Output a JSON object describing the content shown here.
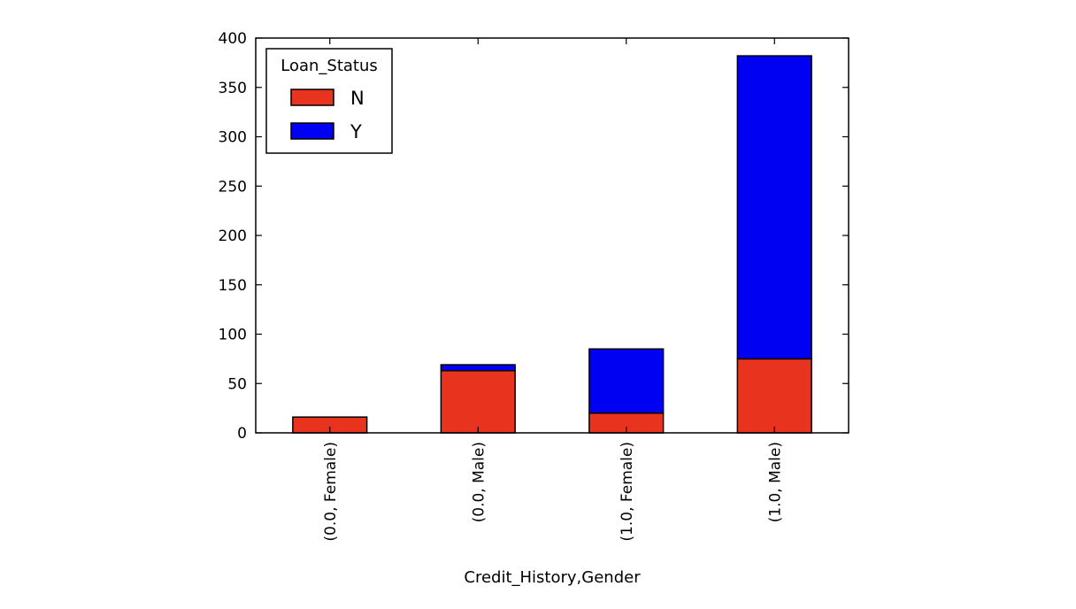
{
  "chart_data": {
    "type": "bar",
    "stacked": true,
    "categories": [
      "(0.0, Female)",
      "(0.0, Male)",
      "(1.0, Female)",
      "(1.0, Male)"
    ],
    "series": [
      {
        "name": "N",
        "values": [
          16,
          63,
          20,
          75
        ],
        "color": "#e8331f"
      },
      {
        "name": "Y",
        "values": [
          0,
          6,
          65,
          307
        ],
        "color": "#0000f2"
      }
    ],
    "xlabel": "Credit_History,Gender",
    "ylabel": "",
    "ylim": [
      0,
      400
    ],
    "yticks": [
      0,
      50,
      100,
      150,
      200,
      250,
      300,
      350,
      400
    ],
    "grid": false,
    "legend": {
      "title": "Loan_Status",
      "placement": "top-left"
    }
  }
}
